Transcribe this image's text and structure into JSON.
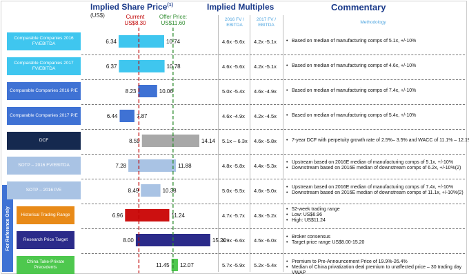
{
  "header": {
    "price_title": "Implied Share Price",
    "price_sup": "(1)",
    "price_unit": "(US$)",
    "current_label": "Current",
    "current_value": "US$8.30",
    "offer_label": "Offer Price:",
    "offer_value": "US$11.60",
    "multiples_title": "Implied Multiples",
    "commentary_title": "Commentary",
    "col_2016": "2016 FV / EBITDA",
    "col_2017": "2017 FV / EBITDA",
    "col_method": "Methodology",
    "for_reference": "For Reference Only"
  },
  "colors": {
    "cyan": "#3fc6ef",
    "blue": "#3f72d4",
    "navy": "#15294f",
    "light_blue": "#a9c3e4",
    "orange": "#e88a18",
    "dark_navy": "#2b2b8a",
    "green": "#4ec84e",
    "gray_bar": "#a8a8a8",
    "red_bar": "#cc1010",
    "current_line": "#c00000",
    "offer_line": "#2e8b2e"
  },
  "rows": [
    {
      "label": "Comparable Companies 2016 FV/EBITDA",
      "m1": "4.6x -5.6x",
      "m2": "4.2x -5.1x",
      "comments": [
        "Based on median of manufacturing comps of 5.1x, +/-10%"
      ]
    },
    {
      "label": "Comparable Companies 2017 FV/EBITDA",
      "m1": "4.6x -5.6x",
      "m2": "4.2x -5.1x",
      "comments": [
        "Based on median of manufacturing comps of 4.6x, +/-10%"
      ]
    },
    {
      "label": "Comparable Companies 2016 P/E",
      "m1": "5.0x -5.4x",
      "m2": "4.6x -4.9x",
      "comments": [
        "Based on median of manufacturing comps of 7.4x, +/-10%"
      ]
    },
    {
      "label": "Comparable Companies 2017 P/E",
      "m1": "4.6x -4.9x",
      "m2": "4.2x -4.5x",
      "comments": [
        "Based on median of manufacturing comps of 5.4x, +/-10%"
      ]
    },
    {
      "label": "DCF",
      "m1": "5.1x – 6.3x",
      "m2": "4.6x -5.8x",
      "comments": [
        "7-year DCF with perpetuity growth rate of 2.5%– 3.5% and WACC of 11.1% – 12.1%"
      ]
    },
    {
      "label": "SOTP – 2016 FV/EBITDA",
      "m1": "4.8x -5.8x",
      "m2": "4.4x -5.3x",
      "comments": [
        "Upstream based on 2016E median of manufacturing comps of 5.1x, +/-10%",
        "Downstream based on 2016E median of downstream comps of 6.2x, +/-10%(2)"
      ]
    },
    {
      "label": "SOTP – 2016 P/E",
      "m1": "5.0x -5.5x",
      "m2": "4.6x -5.0x",
      "comments": [
        "Upstream based on 2016E median of manufacturing comps of 7.4x, +/-10%",
        "Downstream based on 2016E median of downstream comps of 11.1x, +/-10%(2)"
      ]
    },
    {
      "label": "Historical Trading Range",
      "m1": "4.7x -5.7x",
      "m2": "4.3x -5.2x",
      "comments": [
        "52-week trading range",
        "Low: US$6.96",
        "High: US$11.24"
      ]
    },
    {
      "label": "Research Price Target",
      "m1": "4.9x -6.6x",
      "m2": "4.5x -6.0x",
      "comments": [
        "Broker consensus",
        "Target price range US$8.00-15.20"
      ]
    },
    {
      "label": "China Take-Private Precedents",
      "m1": "5.7x -5.9x",
      "m2": "5.2x -5.4x",
      "comments": [
        "Premium to Pre-Announcement Price of 19.9%-26.4%",
        "Median of China privatization deal premium to unaffected price – 30 trading day VWAP"
      ]
    }
  ],
  "chart_data": {
    "type": "bar",
    "subtype": "floating-range",
    "title": "Implied Share Price(1)",
    "ylabel": "(US$)",
    "categories": [
      "Comparable Companies 2016 FV/EBITDA",
      "Comparable Companies 2017 FV/EBITDA",
      "Comparable Companies 2016 P/E",
      "Comparable Companies 2017 P/E",
      "DCF",
      "SOTP – 2016 FV/EBITDA",
      "SOTP – 2016 P/E",
      "Historical Trading Range",
      "Research Price Target",
      "China Take-Private Precedents"
    ],
    "low": [
      6.34,
      6.37,
      8.23,
      6.44,
      8.59,
      7.28,
      8.49,
      6.96,
      8.0,
      11.45
    ],
    "high": [
      10.74,
      10.78,
      10.06,
      7.87,
      14.14,
      11.88,
      10.38,
      11.24,
      15.2,
      12.07
    ],
    "low_labels": [
      "6.34",
      "6.37",
      "8.23",
      "6.44",
      "8.59",
      "7.28",
      "8.49",
      "6.96",
      "8.00",
      "11.45"
    ],
    "high_labels": [
      "10.74",
      "10.78",
      "10.06",
      "7.87",
      "14.14",
      "11.88",
      "10.38",
      "11.24",
      "15.20",
      "12.07"
    ],
    "reference_lines": [
      {
        "name": "Current",
        "value": 8.3,
        "label": "US$8.30"
      },
      {
        "name": "Offer Price",
        "value": 11.6,
        "label": "US$11.60"
      }
    ]
  }
}
